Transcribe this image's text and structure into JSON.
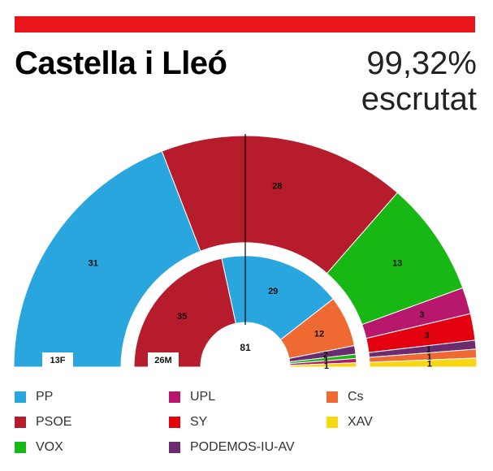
{
  "header": {
    "title": "Castella i Lleó",
    "percent": "99,32%",
    "percent_label": "escrutat",
    "bar_color": "#e8151b"
  },
  "chart_data": {
    "type": "pie",
    "subtype": "double-semicircle-parliament",
    "center_label": "81",
    "majority_line": true,
    "rings": [
      {
        "name": "13F",
        "position": "outer",
        "values": [
          {
            "party": "PP",
            "seats": 31,
            "color": "#2aa6df"
          },
          {
            "party": "PSOE",
            "seats": 28,
            "color": "#b71c2d"
          },
          {
            "party": "VOX",
            "seats": 13,
            "color": "#17b814"
          },
          {
            "party": "UPL",
            "seats": 3,
            "color": "#b8186b"
          },
          {
            "party": "SY",
            "seats": 3,
            "color": "#e3000f"
          },
          {
            "party": "PODEMOS-IU-AV",
            "seats": 1,
            "color": "#6a2c6f"
          },
          {
            "party": "Cs",
            "seats": 1,
            "color": "#ef6a33"
          },
          {
            "party": "XAV",
            "seats": 1,
            "color": "#f7d613"
          }
        ]
      },
      {
        "name": "26M",
        "position": "inner",
        "values": [
          {
            "party": "PSOE",
            "seats": 35,
            "color": "#b71c2d"
          },
          {
            "party": "PP",
            "seats": 29,
            "color": "#2aa6df"
          },
          {
            "party": "Cs",
            "seats": 12,
            "color": "#ef6a33"
          },
          {
            "party": "PODEMOS-IU-AV",
            "seats": 2,
            "color": "#6a2c6f"
          },
          {
            "party": "VOX",
            "seats": 1,
            "color": "#17b814"
          },
          {
            "party": "UPL",
            "seats": 1,
            "color": "#b8186b"
          },
          {
            "party": "XAV",
            "seats": 1,
            "color": "#f7d613"
          }
        ]
      }
    ],
    "legend": [
      {
        "label": "PP",
        "color": "#2aa6df"
      },
      {
        "label": "UPL",
        "color": "#b8186b"
      },
      {
        "label": "Cs",
        "color": "#ef6a33"
      },
      {
        "label": "PSOE",
        "color": "#b71c2d"
      },
      {
        "label": "SY",
        "color": "#e3000f"
      },
      {
        "label": "XAV",
        "color": "#f7d613"
      },
      {
        "label": "VOX",
        "color": "#17b814"
      },
      {
        "label": "PODEMOS-IU-AV",
        "color": "#6a2c6f"
      }
    ]
  }
}
